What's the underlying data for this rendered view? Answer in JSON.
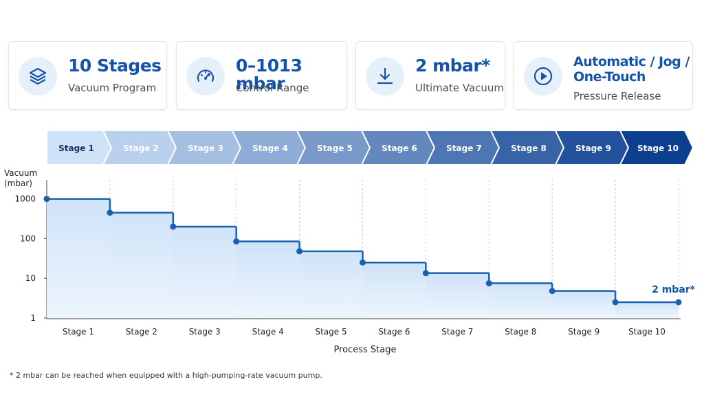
{
  "cards": [
    {
      "title": "10 Stages",
      "subtitle": "Vacuum Program"
    },
    {
      "title": "0–1013 mbar",
      "subtitle": "Control Range"
    },
    {
      "title": "2 mbar*",
      "subtitle": "Ultimate Vacuum"
    },
    {
      "title": "Automatic / Jog / One-Touch",
      "subtitle": "Pressure Release"
    }
  ],
  "chart_data": {
    "type": "step",
    "ylabel": "Vacuum (mbar)",
    "xlabel": "Process Stage",
    "categories": [
      "Stage 1",
      "Stage 2",
      "Stage 3",
      "Stage 4",
      "Stage 5",
      "Stage 6",
      "Stage 7",
      "Stage 8",
      "Stage 9",
      "Stage 10"
    ],
    "series": [
      {
        "name": "Vacuum",
        "color": "#1a5fb4",
        "values": [
          1000,
          450,
          200,
          85,
          48,
          25,
          13.5,
          7.5,
          4.8,
          2.5
        ]
      }
    ],
    "annotation": "2 mbar*",
    "ylim": [
      1,
      3000
    ],
    "yticks": [
      1,
      10,
      100,
      1000
    ],
    "log_y": true
  },
  "footnote": "* 2 mbar can be reached when equipped with a high-pumping-rate vacuum pump."
}
